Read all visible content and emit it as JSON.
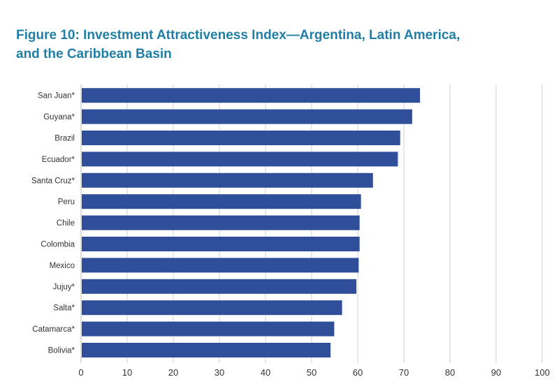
{
  "title_line1": "Figure 10: Investment Attractiveness Index—Argentina, Latin America,",
  "title_line2": "and the Caribbean Basin",
  "colors": {
    "title": "#1f7fa6",
    "bar": "#2f4f9a",
    "grid": "#d0d0d0",
    "text": "#333333"
  },
  "chart_data": {
    "type": "bar",
    "orientation": "horizontal",
    "title": "Figure 10: Investment Attractiveness Index—Argentina, Latin America, and the Caribbean Basin",
    "xlabel": "",
    "ylabel": "",
    "categories": [
      "San Juan*",
      "Guyana*",
      "Brazil",
      "Ecuador*",
      "Santa Cruz*",
      "Peru",
      "Chile",
      "Colombia",
      "Mexico",
      "Jujuy*",
      "Salta*",
      "Catamarca*",
      "Bolivia*"
    ],
    "values": [
      73.5,
      71.8,
      69.2,
      68.7,
      63.3,
      60.7,
      60.4,
      60.4,
      60.2,
      59.7,
      56.6,
      54.9,
      54.1
    ],
    "xlim": [
      0,
      100
    ],
    "xticks": [
      0,
      10,
      20,
      30,
      40,
      50,
      60,
      70,
      80,
      90,
      100
    ],
    "grid": true,
    "legend": "none"
  }
}
